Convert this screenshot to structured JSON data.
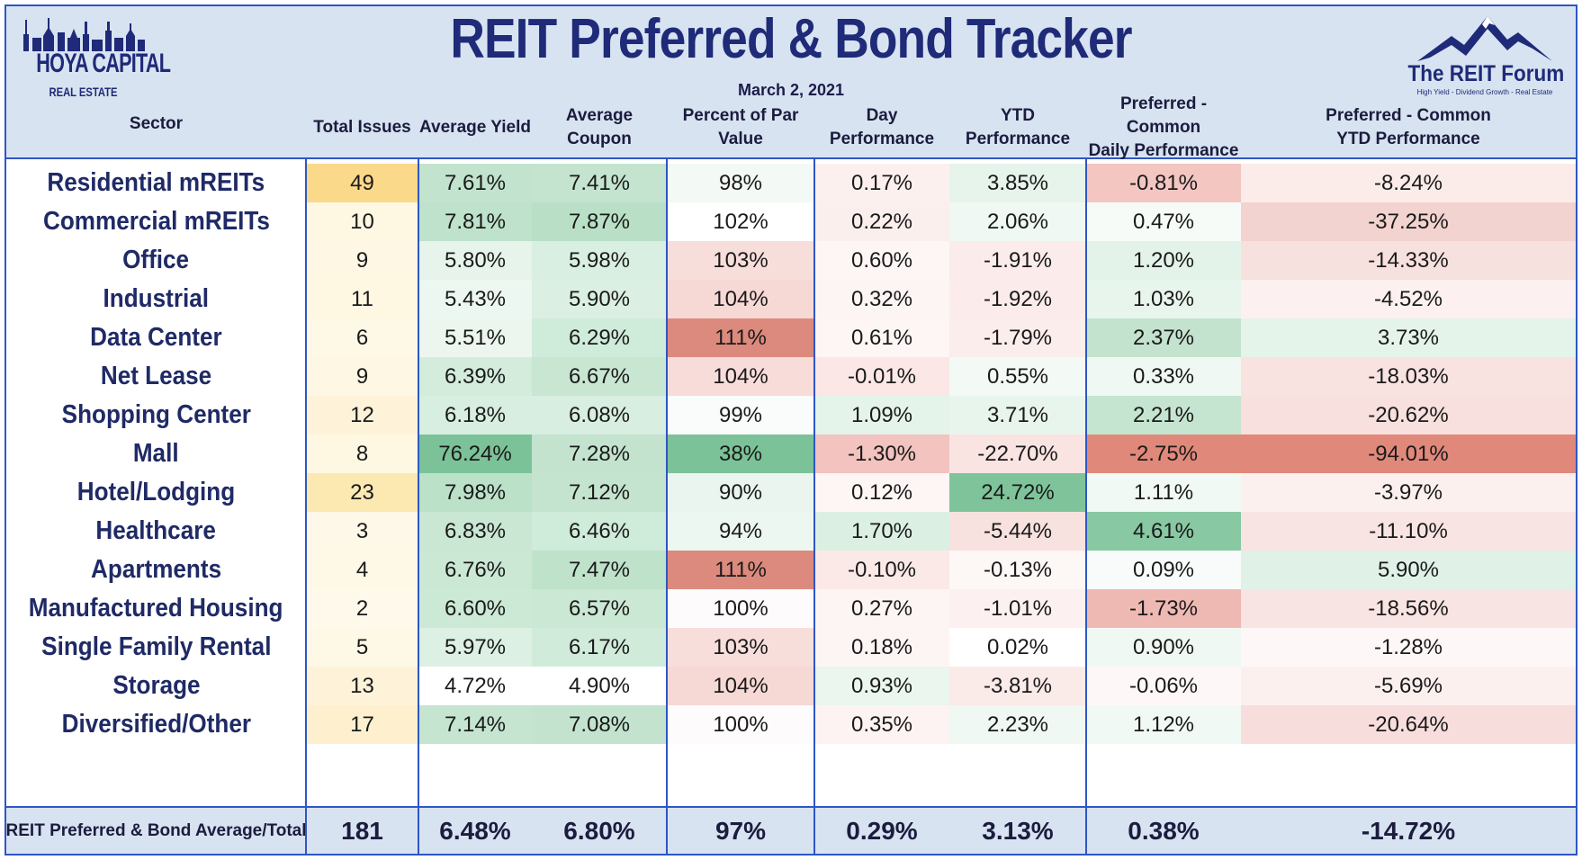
{
  "title": "REIT Preferred & Bond Tracker",
  "date": "March 2, 2021",
  "logo_left": {
    "name": "HOYA CAPITAL",
    "sub": "REAL ESTATE"
  },
  "logo_right": {
    "name": "The REIT Forum",
    "tagline": "High Yield - Dividend Growth - Real Estate"
  },
  "colors": {
    "accent": "#2f56c4",
    "header_bg": "#d7e3f1",
    "title": "#1f2a78"
  },
  "chart_data": {
    "type": "table",
    "columns": [
      "Sector",
      "Total Issues",
      "Average Yield",
      "Average Coupon",
      "Percent of Par Value",
      "Day Performance",
      "YTD Performance",
      "Preferred - Common Daily Performance",
      "Preferred - Common YTD Performance"
    ],
    "column_lines": [
      [
        "Sector"
      ],
      [
        "Total Issues"
      ],
      [
        "Average Yield"
      ],
      [
        "Average Coupon"
      ],
      [
        "Percent of Par Value"
      ],
      [
        "Day Performance"
      ],
      [
        "YTD Performance"
      ],
      [
        "Preferred - Common",
        "Daily Performance"
      ],
      [
        "Preferred - Common",
        "YTD Performance"
      ]
    ],
    "rows": [
      [
        "Residential mREITs",
        "49",
        "7.61%",
        "7.41%",
        "98%",
        "0.17%",
        "3.85%",
        "-0.81%",
        "-8.24%"
      ],
      [
        "Commercial mREITs",
        "10",
        "7.81%",
        "7.87%",
        "102%",
        "0.22%",
        "2.06%",
        "0.47%",
        "-37.25%"
      ],
      [
        "Office",
        "9",
        "5.80%",
        "5.98%",
        "103%",
        "0.60%",
        "-1.91%",
        "1.20%",
        "-14.33%"
      ],
      [
        "Industrial",
        "11",
        "5.43%",
        "5.90%",
        "104%",
        "0.32%",
        "-1.92%",
        "1.03%",
        "-4.52%"
      ],
      [
        "Data Center",
        "6",
        "5.51%",
        "6.29%",
        "111%",
        "0.61%",
        "-1.79%",
        "2.37%",
        "3.73%"
      ],
      [
        "Net Lease",
        "9",
        "6.39%",
        "6.67%",
        "104%",
        "-0.01%",
        "0.55%",
        "0.33%",
        "-18.03%"
      ],
      [
        "Shopping Center",
        "12",
        "6.18%",
        "6.08%",
        "99%",
        "1.09%",
        "3.71%",
        "2.21%",
        "-20.62%"
      ],
      [
        "Mall",
        "8",
        "76.24%",
        "7.28%",
        "38%",
        "-1.30%",
        "-22.70%",
        "-2.75%",
        "-94.01%"
      ],
      [
        "Hotel/Lodging",
        "23",
        "7.98%",
        "7.12%",
        "90%",
        "0.12%",
        "24.72%",
        "1.11%",
        "-3.97%"
      ],
      [
        "Healthcare",
        "3",
        "6.83%",
        "6.46%",
        "94%",
        "1.70%",
        "-5.44%",
        "4.61%",
        "-11.10%"
      ],
      [
        "Apartments",
        "4",
        "6.76%",
        "7.47%",
        "111%",
        "-0.10%",
        "-0.13%",
        "0.09%",
        "5.90%"
      ],
      [
        "Manufactured Housing",
        "2",
        "6.60%",
        "6.57%",
        "100%",
        "0.27%",
        "-1.01%",
        "-1.73%",
        "-18.56%"
      ],
      [
        "Single Family Rental",
        "5",
        "5.97%",
        "6.17%",
        "103%",
        "0.18%",
        "0.02%",
        "0.90%",
        "-1.28%"
      ],
      [
        "Storage",
        "13",
        "4.72%",
        "4.90%",
        "104%",
        "0.93%",
        "-3.81%",
        "-0.06%",
        "-5.69%"
      ],
      [
        "Diversified/Other",
        "17",
        "7.14%",
        "7.08%",
        "100%",
        "0.35%",
        "2.23%",
        "1.12%",
        "-20.64%"
      ]
    ],
    "total_row": [
      "REIT Preferred & Bond Average/Total",
      "181",
      "6.48%",
      "6.80%",
      "97%",
      "0.29%",
      "3.13%",
      "0.38%",
      "-14.72%"
    ],
    "cell_colors": [
      [
        null,
        "#fbd98a",
        "#c2e3cd",
        "#c4e4cf",
        "#f3f9f5",
        "#fcf0ef",
        "#e6f4eb",
        "#f4c6c2",
        "#fbecea"
      ],
      [
        null,
        "#fef7e2",
        "#bee2cb",
        "#b9e0c7",
        "#ffffff",
        "#fbefee",
        "#eff8f2",
        "#f6fbf8",
        "#f3d3cf"
      ],
      [
        null,
        "#fef7e4",
        "#e6f4eb",
        "#d9efe1",
        "#f7dedb",
        "#fdf6f5",
        "#fbeceb",
        "#e4f3ea",
        "#f7e1de"
      ],
      [
        null,
        "#fef7e2",
        "#edf7f1",
        "#dbefe2",
        "#f6d8d5",
        "#fdf5f4",
        "#fbeceb",
        "#e8f5ed",
        "#fcf1f0"
      ],
      [
        null,
        "#fef8e6",
        "#ecf6ef",
        "#cfebda",
        "#dc8a7d",
        "#fdf6f5",
        "#fbedeb",
        "#c3e3ce",
        "#e5f4ea"
      ],
      [
        null,
        "#fef7e4",
        "#d3ecdc",
        "#c8e6d2",
        "#f7dcd9",
        "#fbe8e6",
        "#f3f9f5",
        "#eff8f2",
        "#f8e3e1"
      ],
      [
        null,
        "#fef3d8",
        "#d8eee0",
        "#d8eee0",
        "#f9fcfa",
        "#e5f4ea",
        "#e8f5ed",
        "#c6e5d1",
        "#f7e0de"
      ],
      [
        null,
        "#fef7e2",
        "#7cc298",
        "#c3e3ce",
        "#7cc298",
        "#f2c3bf",
        "#f9e4e2",
        "#e0897b",
        "#e0897b"
      ],
      [
        null,
        "#fce9b2",
        "#bbe1c8",
        "#c4e4cf",
        "#e9f5ee",
        "#fdf6f5",
        "#7fc39a",
        "#f1f9f4",
        "#fcf0ef"
      ],
      [
        null,
        "#fef8e8",
        "#c9e7d3",
        "#cfebd9",
        "#edf7f1",
        "#dbf0e3",
        "#f8e2df",
        "#88c8a2",
        "#f8e5e3"
      ],
      [
        null,
        "#fef8e7",
        "#cbe8d5",
        "#bfe2cb",
        "#dc8a7d",
        "#fbe9e7",
        "#fdf7f6",
        "#f8fbf9",
        "#e0f1e7"
      ],
      [
        null,
        "#fef9ea",
        "#cce9d6",
        "#cbe8d4",
        "#fdfbfb",
        "#fdf5f4",
        "#fcf1f0",
        "#efb9b3",
        "#f8e4e2"
      ],
      [
        null,
        "#fef8e6",
        "#dcf0e3",
        "#d1ebdb",
        "#f7dedb",
        "#fdf5f4",
        "#ffffff",
        "#f0f8f3",
        "#fdf8f7"
      ],
      [
        null,
        "#fef3d8",
        "#ffffff",
        "#ffffff",
        "#f6d8d5",
        "#eaf6ee",
        "#faeae8",
        "#fdf8f7",
        "#fcf0ef"
      ],
      [
        null,
        "#fef0cf",
        "#c5e5d0",
        "#c3e3cf",
        "#fdfbfb",
        "#fdf3f2",
        "#eff8f2",
        "#f1f9f4",
        "#f7dedc"
      ]
    ]
  }
}
